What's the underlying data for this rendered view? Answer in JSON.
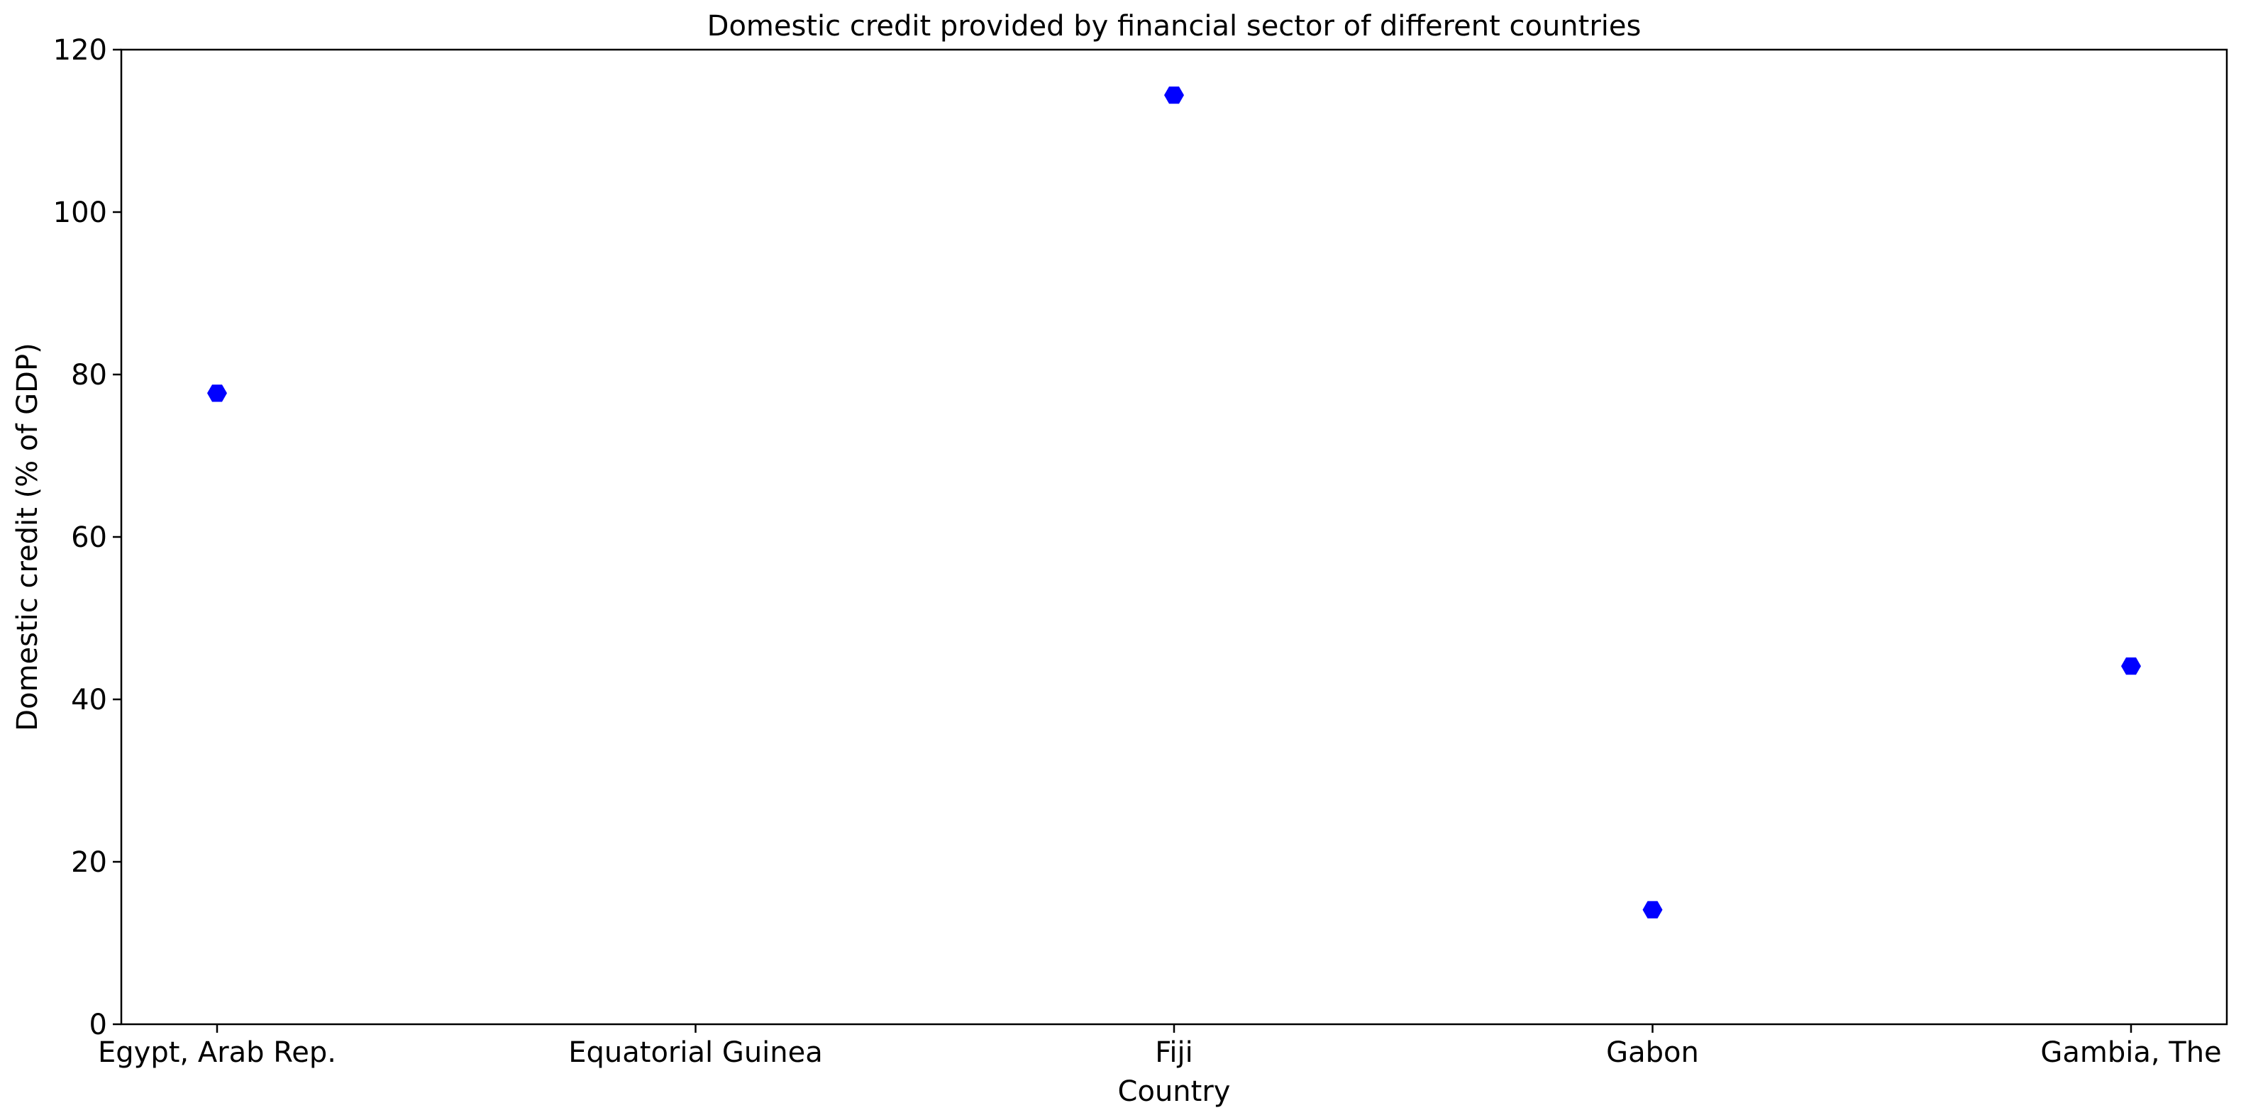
{
  "chart_data": {
    "type": "scatter",
    "title": "Domestic credit provided by financial sector of different countries",
    "xlabel": "Country",
    "ylabel": "Domestic credit (% of GDP)",
    "categories": [
      "Egypt, Arab Rep.",
      "Equatorial Guinea",
      "Fiji",
      "Gabon",
      "Gambia, The"
    ],
    "values": [
      77.7,
      null,
      114.4,
      14.1,
      44.1
    ],
    "ylim": [
      0,
      120
    ],
    "yticks": [
      0,
      20,
      40,
      60,
      80,
      100,
      120
    ],
    "yticks_labels": [
      "0",
      "20",
      "40",
      "60",
      "80",
      "100",
      "120"
    ],
    "marker": "hexagon",
    "color": "#0000ff",
    "grid": false,
    "legend": "none"
  }
}
